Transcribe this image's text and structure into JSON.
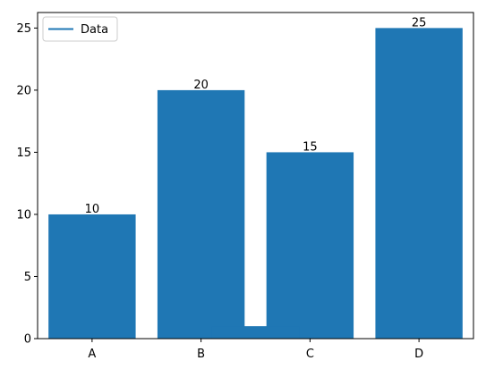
{
  "chart_data": {
    "type": "bar",
    "categories": [
      "A",
      "B",
      "C",
      "D"
    ],
    "series": [
      {
        "values": [
          10,
          20,
          15,
          25
        ],
        "color": "#1f77b4",
        "data_labels": [
          "10",
          "20",
          "15",
          "25"
        ]
      }
    ],
    "overlay_bar": {
      "x": 1.5,
      "value": 1,
      "color": "#1f77b4"
    },
    "legend": {
      "entries": [
        {
          "label": "Data",
          "marker": "line",
          "color": "#1f77b4"
        }
      ],
      "placement": "upper-left"
    },
    "title": "",
    "xlabel": "",
    "ylabel": "",
    "ylim": [
      0,
      26.25
    ],
    "yticks": [
      0,
      5,
      10,
      15,
      20,
      25
    ],
    "ytick_labels": [
      "0",
      "5",
      "10",
      "15",
      "20",
      "25"
    ],
    "grid": false
  }
}
